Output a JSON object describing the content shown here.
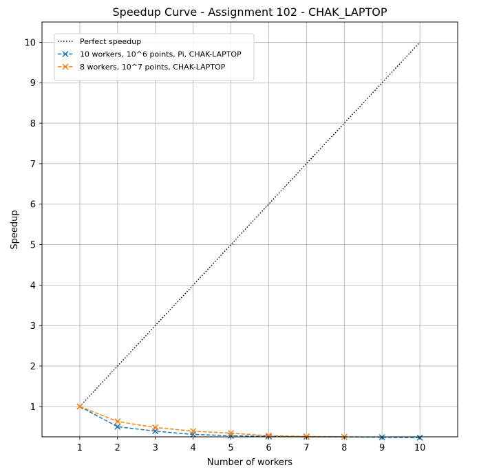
{
  "chart_data": {
    "type": "line",
    "title": "Speedup Curve - Assignment 102 - CHAK_LAPTOP",
    "xlabel": "Number of workers",
    "ylabel": "Speedup",
    "xlim": [
      0,
      11
    ],
    "ylim": [
      0.25,
      10.5
    ],
    "xticks": [
      1,
      2,
      3,
      4,
      5,
      6,
      7,
      8,
      9,
      10
    ],
    "yticks": [
      1,
      2,
      3,
      4,
      5,
      6,
      7,
      8,
      9,
      10
    ],
    "grid": true,
    "legend_position": "top-left",
    "series": [
      {
        "name": "Perfect speedup",
        "color": "#000000",
        "style": "dotted",
        "marker": "none",
        "x": [
          1,
          2,
          3,
          4,
          5,
          6,
          7,
          8,
          9,
          10
        ],
        "y": [
          1,
          2,
          3,
          4,
          5,
          6,
          7,
          8,
          9,
          10
        ]
      },
      {
        "name": "10 workers, 10^6 points, Pi, CHAK-LAPTOP",
        "color": "#1f77b4",
        "style": "dashed",
        "marker": "x",
        "x": [
          1,
          2,
          3,
          4,
          5,
          6,
          7,
          8,
          9,
          10
        ],
        "y": [
          1.0,
          0.5,
          0.39,
          0.31,
          0.28,
          0.26,
          0.25,
          0.25,
          0.24,
          0.23
        ]
      },
      {
        "name": "8 workers, 10^7 points, CHAK-LAPTOP",
        "color": "#ff7f0e",
        "style": "dashed",
        "marker": "x",
        "x": [
          1,
          2,
          3,
          4,
          5,
          6,
          7,
          8
        ],
        "y": [
          1.0,
          0.63,
          0.48,
          0.39,
          0.34,
          0.28,
          0.26,
          0.25
        ]
      }
    ]
  }
}
